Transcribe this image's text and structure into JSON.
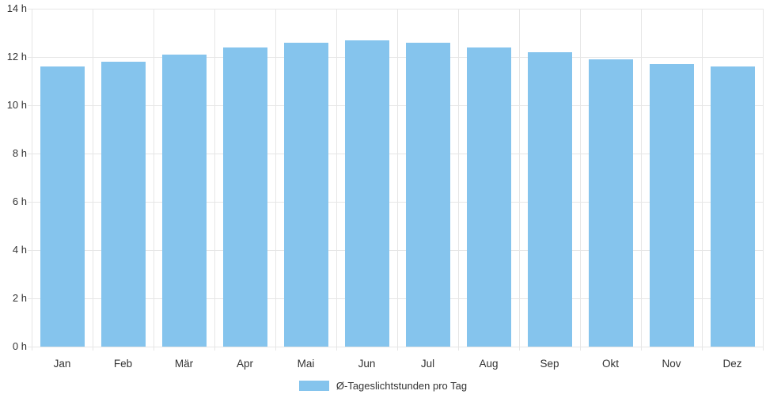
{
  "chart_data": {
    "type": "bar",
    "title": "",
    "xlabel": "",
    "ylabel": "",
    "categories": [
      "Jan",
      "Feb",
      "Mär",
      "Apr",
      "Mai",
      "Jun",
      "Jul",
      "Aug",
      "Sep",
      "Okt",
      "Nov",
      "Dez"
    ],
    "series": [
      {
        "name": "Ø-Tageslichtstunden pro Tag",
        "values": [
          11.6,
          11.8,
          12.1,
          12.4,
          12.6,
          12.7,
          12.6,
          12.4,
          12.2,
          11.9,
          11.7,
          11.6
        ]
      }
    ],
    "ylim": [
      0,
      14
    ],
    "ytick_step": 2,
    "ytick_labels": [
      "0 h",
      "2 h",
      "4 h",
      "6 h",
      "8 h",
      "10 h",
      "12 h",
      "14 h"
    ],
    "grid": true,
    "legend_position": "bottom",
    "bar_color": "#85C4ED",
    "grid_color": "#E6E6E6",
    "text_color": "#333333",
    "background_color": "#FFFFFF"
  },
  "legend": {
    "label": "Ø-Tageslichtstunden pro Tag",
    "swatch_color": "#85C4ED"
  }
}
